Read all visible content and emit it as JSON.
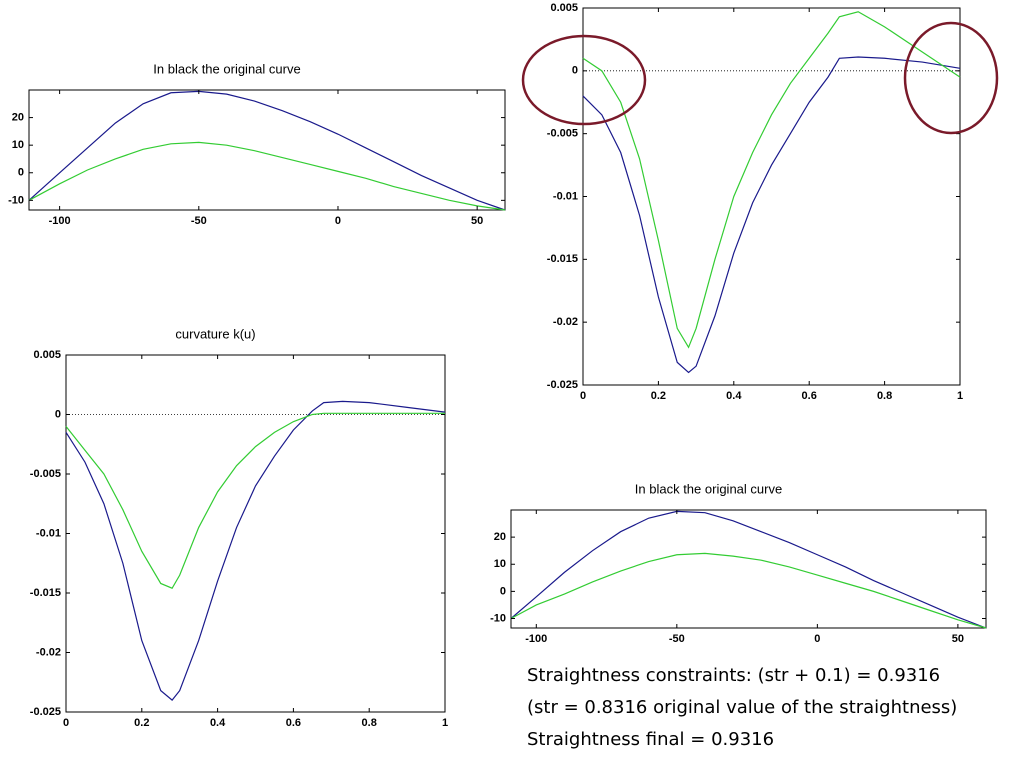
{
  "chart_data": [
    {
      "type": "line",
      "title": "In black the original curve",
      "x": [
        -111,
        -100,
        -90,
        -80,
        -70,
        -60,
        -50,
        -40,
        -30,
        -20,
        -10,
        0,
        10,
        20,
        30,
        40,
        50,
        60
      ],
      "series": [
        {
          "color": "#1a1a8c",
          "values": [
            -10,
            0,
            9,
            18,
            25,
            29,
            29.5,
            28.5,
            26,
            22.5,
            18.5,
            14,
            9,
            4,
            -1,
            -5.5,
            -10,
            -13.5
          ]
        },
        {
          "color": "#33cc33",
          "values": [
            -10,
            -4,
            1,
            5,
            8.5,
            10.5,
            11,
            10,
            8,
            5.5,
            3,
            0.5,
            -2,
            -5,
            -7.5,
            -10,
            -12,
            -13.5
          ]
        }
      ],
      "xlim": [
        -111,
        60
      ],
      "ylim": [
        -13.5,
        30
      ],
      "xticks": [
        -100,
        -50,
        0,
        50
      ],
      "yticks": [
        -10,
        0,
        10,
        20
      ],
      "zero_line": false
    },
    {
      "type": "line",
      "x": [
        0,
        0.05,
        0.1,
        0.15,
        0.2,
        0.25,
        0.28,
        0.3,
        0.35,
        0.4,
        0.45,
        0.5,
        0.55,
        0.6,
        0.65,
        0.68,
        0.73,
        0.8,
        0.9,
        1
      ],
      "series": [
        {
          "color": "#1a1a8c",
          "values": [
            -0.002,
            -0.0035,
            -0.0065,
            -0.0115,
            -0.018,
            -0.0232,
            -0.024,
            -0.0235,
            -0.0195,
            -0.0145,
            -0.0105,
            -0.0075,
            -0.005,
            -0.0025,
            -0.0005,
            0.001,
            0.0011,
            0.001,
            0.0007,
            0.0002
          ]
        },
        {
          "color": "#33cc33",
          "values": [
            0.001,
            0,
            -0.0025,
            -0.007,
            -0.0135,
            -0.0205,
            -0.022,
            -0.0205,
            -0.015,
            -0.01,
            -0.0065,
            -0.0035,
            -0.001,
            0.001,
            0.003,
            0.0043,
            0.0047,
            0.0035,
            0.0015,
            -0.0005
          ]
        }
      ],
      "xlim": [
        0,
        1
      ],
      "ylim": [
        -0.025,
        0.005
      ],
      "xticks": [
        0,
        0.2,
        0.4,
        0.6,
        0.8,
        1
      ],
      "yticks": [
        0.005,
        0,
        -0.005,
        -0.01,
        -0.015,
        -0.02,
        -0.025
      ],
      "zero_line": true
    },
    {
      "type": "line",
      "title": "curvature k(u)",
      "x": [
        0,
        0.05,
        0.1,
        0.15,
        0.2,
        0.25,
        0.28,
        0.3,
        0.35,
        0.4,
        0.45,
        0.5,
        0.55,
        0.6,
        0.65,
        0.68,
        0.73,
        0.8,
        0.9,
        1
      ],
      "series": [
        {
          "color": "#1a1a8c",
          "values": [
            -0.0015,
            -0.004,
            -0.0075,
            -0.0125,
            -0.019,
            -0.0232,
            -0.024,
            -0.0232,
            -0.019,
            -0.014,
            -0.0095,
            -0.006,
            -0.0035,
            -0.0013,
            0.0003,
            0.001,
            0.0011,
            0.001,
            0.0006,
            0.0002
          ]
        },
        {
          "color": "#33cc33",
          "values": [
            -0.001,
            -0.003,
            -0.005,
            -0.008,
            -0.0115,
            -0.0142,
            -0.0146,
            -0.0135,
            -0.0095,
            -0.0065,
            -0.0043,
            -0.0027,
            -0.0015,
            -0.0006,
            0,
            0.0001,
            0.0001,
            0.0001,
            0.0001,
            0.0001
          ]
        }
      ],
      "xlim": [
        0,
        1
      ],
      "ylim": [
        -0.025,
        0.005
      ],
      "xticks": [
        0,
        0.2,
        0.4,
        0.6,
        0.8,
        1
      ],
      "yticks": [
        0.005,
        0,
        -0.005,
        -0.01,
        -0.015,
        -0.02,
        -0.025
      ],
      "zero_line": true
    },
    {
      "type": "line",
      "title": "In black the original curve",
      "x": [
        -109,
        -100,
        -90,
        -80,
        -70,
        -60,
        -50,
        -40,
        -30,
        -20,
        -10,
        0,
        10,
        20,
        30,
        40,
        50,
        60
      ],
      "series": [
        {
          "color": "#1a1a8c",
          "values": [
            -10,
            -2,
            7,
            15,
            22,
            27,
            29.5,
            29,
            26,
            22,
            18,
            13.5,
            9,
            4,
            -0.5,
            -5,
            -9.5,
            -13.5
          ]
        },
        {
          "color": "#33cc33",
          "values": [
            -10,
            -5,
            -1,
            3.5,
            7.5,
            11,
            13.5,
            14,
            13,
            11.5,
            9,
            6,
            3,
            0,
            -3.5,
            -7,
            -10.5,
            -13.5
          ]
        }
      ],
      "xlim": [
        -109,
        60
      ],
      "ylim": [
        -13.5,
        30
      ],
      "xticks": [
        -100,
        -50,
        0,
        50
      ],
      "yticks": [
        -10,
        0,
        10,
        20
      ],
      "zero_line": false
    }
  ],
  "notes": [
    "Straightness constraints: (str + 0.1) = 0.9316",
    "(str = 0.8316 original value of the straightness)",
    "Straightness final = 0.9316"
  ]
}
